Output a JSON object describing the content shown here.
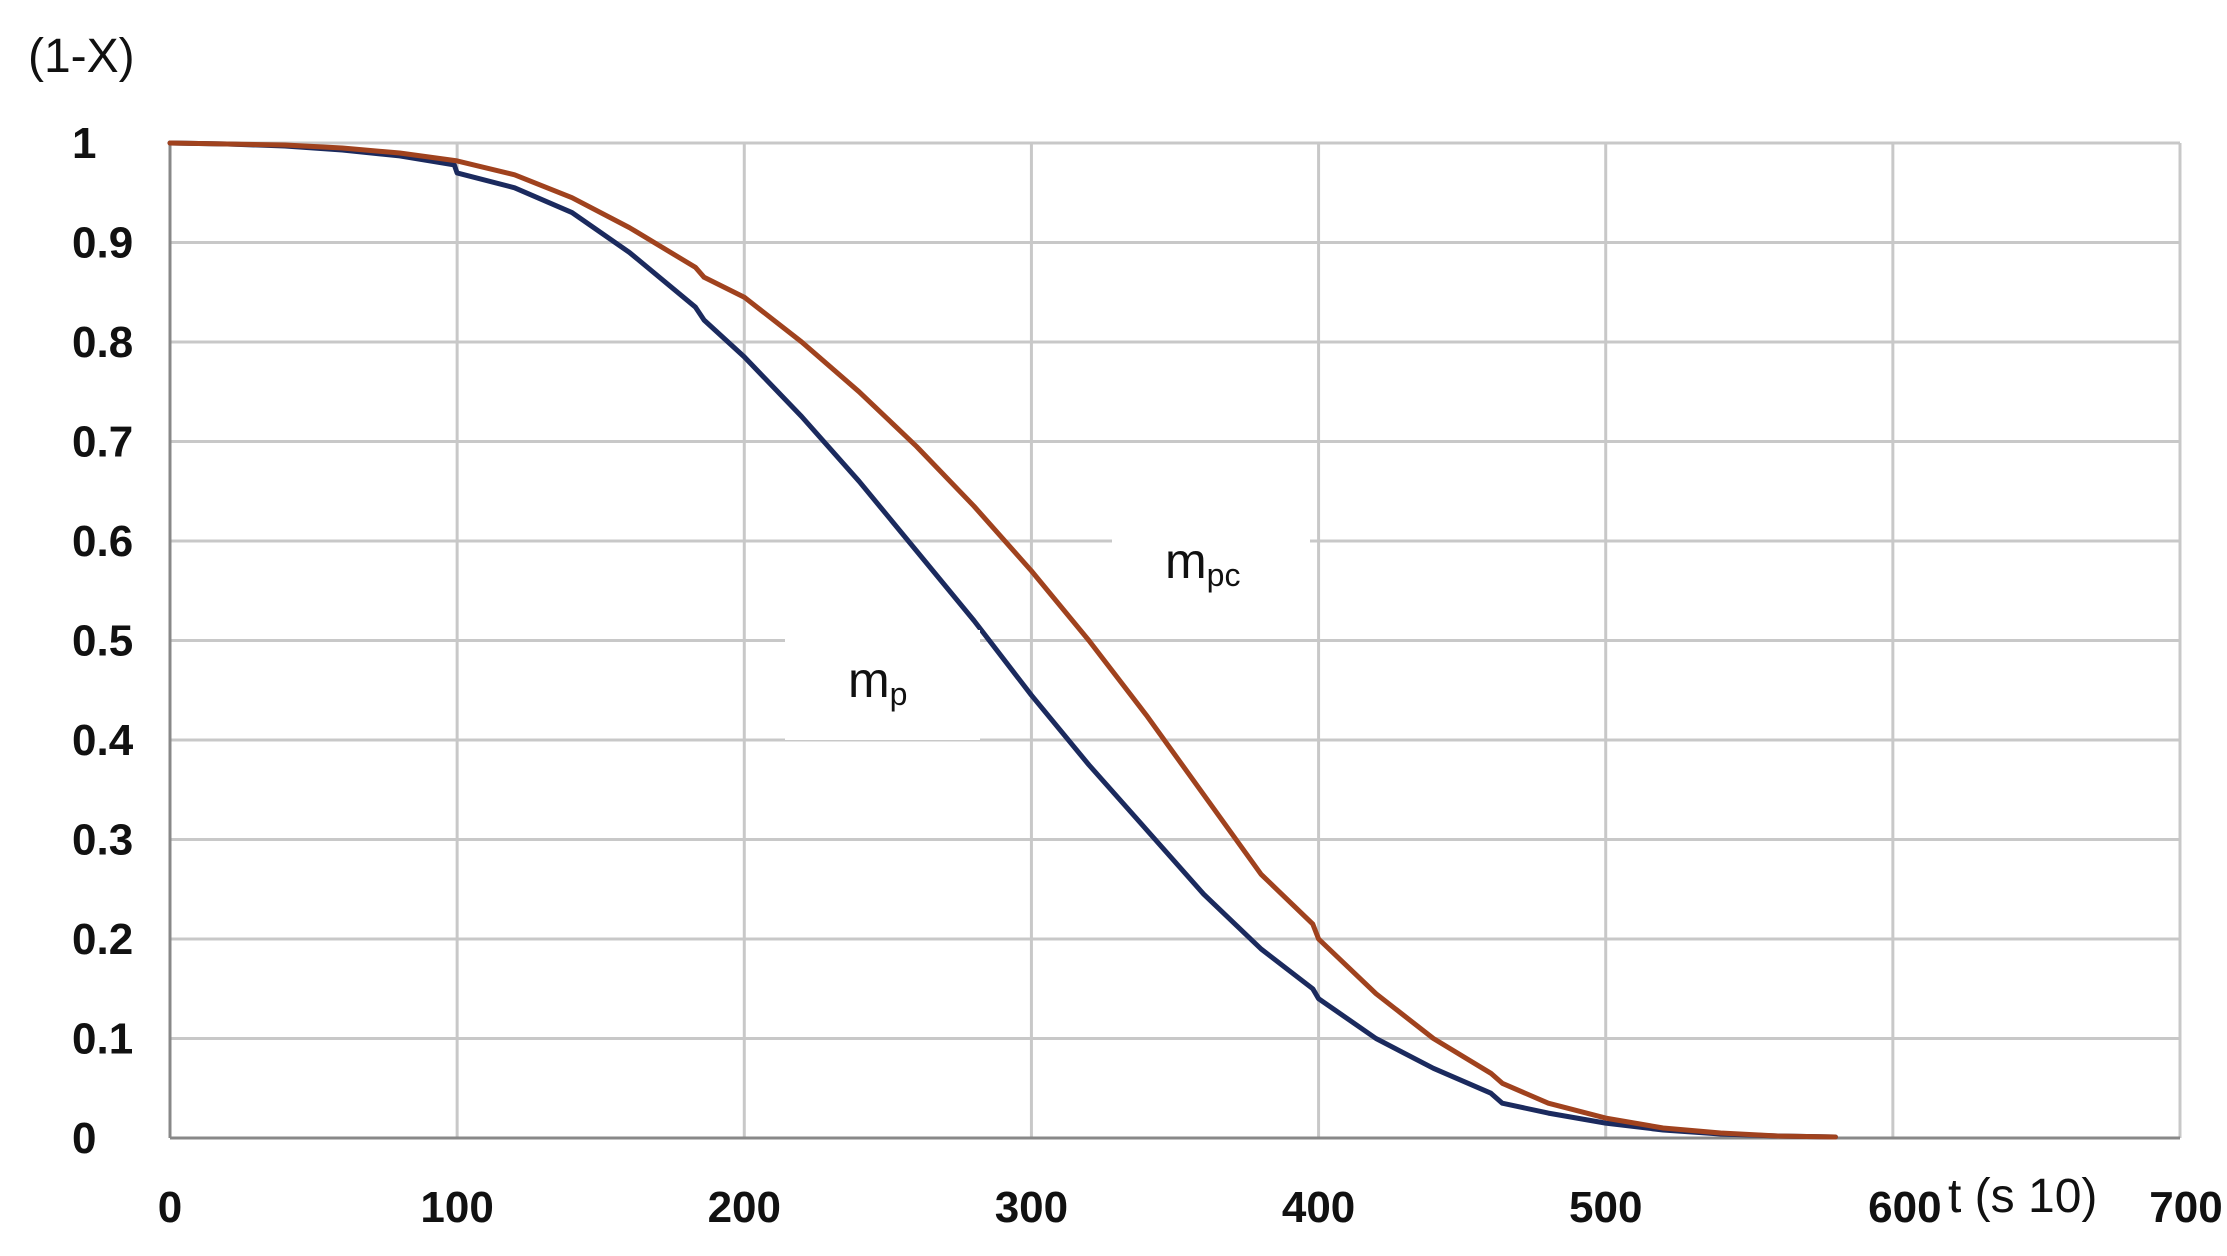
{
  "chart_data": {
    "type": "line",
    "title": "",
    "ylabel": "(1-X)",
    "xlabel": "t (s 10)",
    "xlim": [
      0,
      700
    ],
    "ylim": [
      0,
      1
    ],
    "xticks": [
      0,
      100,
      200,
      300,
      400,
      500,
      600,
      700
    ],
    "xtick_labels": [
      "0",
      "100",
      "200",
      "300",
      "400",
      "500",
      "600",
      "700"
    ],
    "yticks": [
      0,
      0.1,
      0.2,
      0.3,
      0.4,
      0.5,
      0.6,
      0.7,
      0.8,
      0.9,
      1
    ],
    "ytick_labels": [
      "0",
      "0.1",
      "0.2",
      "0.3",
      "0.4",
      "0.5",
      "0.6",
      "0.7",
      "0.8",
      "0.9",
      "1"
    ],
    "grid": true,
    "legend": "none",
    "series": [
      {
        "name": "mp",
        "label_main": "m",
        "label_sub": "p",
        "color": "#1b2a5e",
        "x": [
          0,
          20,
          40,
          60,
          80,
          99,
          100,
          120,
          140,
          160,
          183,
          186,
          200,
          220,
          240,
          260,
          280,
          300,
          320,
          340,
          360,
          380,
          398,
          400,
          420,
          440,
          460,
          464,
          480,
          500,
          520,
          540,
          560,
          580
        ],
        "y": [
          1.0,
          0.999,
          0.997,
          0.993,
          0.987,
          0.978,
          0.97,
          0.955,
          0.93,
          0.89,
          0.835,
          0.822,
          0.785,
          0.725,
          0.66,
          0.59,
          0.52,
          0.445,
          0.375,
          0.31,
          0.245,
          0.19,
          0.15,
          0.14,
          0.1,
          0.07,
          0.045,
          0.035,
          0.025,
          0.015,
          0.008,
          0.004,
          0.002,
          0.001
        ]
      },
      {
        "name": "mpc",
        "label_main": "m",
        "label_sub": "pc",
        "color": "#a0421e",
        "x": [
          0,
          20,
          40,
          60,
          80,
          100,
          120,
          140,
          160,
          183,
          186,
          200,
          220,
          240,
          260,
          280,
          300,
          320,
          340,
          360,
          380,
          398,
          400,
          420,
          440,
          460,
          464,
          480,
          500,
          520,
          540,
          560,
          580
        ],
        "y": [
          1.0,
          0.999,
          0.998,
          0.995,
          0.99,
          0.982,
          0.968,
          0.945,
          0.915,
          0.875,
          0.865,
          0.845,
          0.8,
          0.75,
          0.695,
          0.635,
          0.57,
          0.5,
          0.425,
          0.345,
          0.265,
          0.215,
          0.2,
          0.145,
          0.1,
          0.065,
          0.055,
          0.035,
          0.02,
          0.01,
          0.005,
          0.002,
          0.001
        ]
      }
    ]
  }
}
